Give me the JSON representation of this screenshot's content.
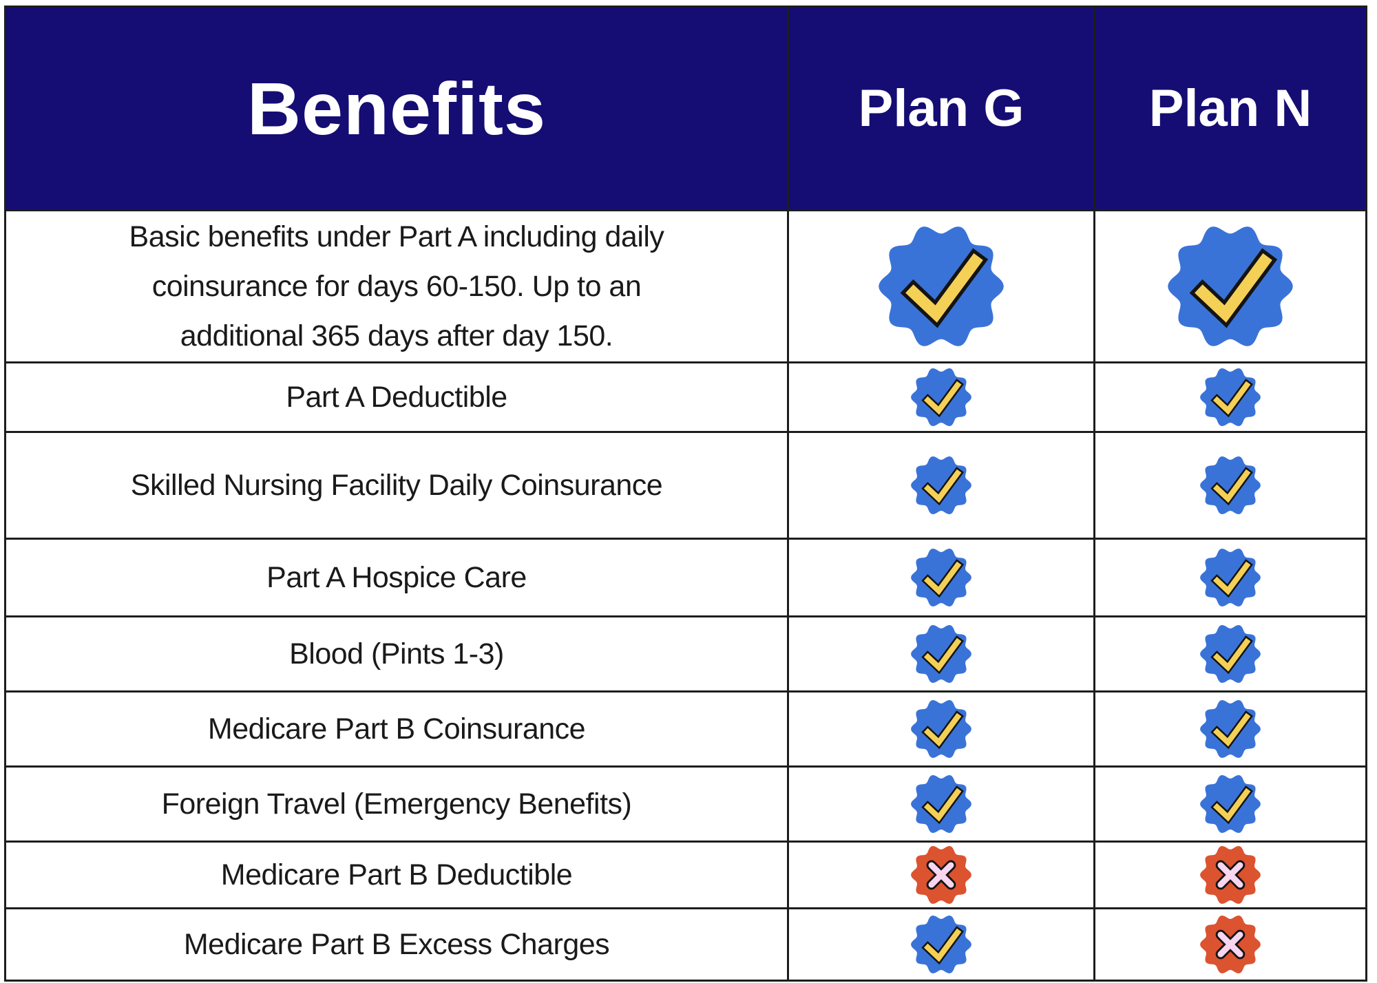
{
  "chart_data": {
    "type": "table",
    "title": "Benefits",
    "columns": [
      "Benefits",
      "Plan G",
      "Plan N"
    ],
    "rows": [
      {
        "benefit": "Basic benefits under Part A including daily coinsurance for days 60-150.  Up to an additional 365 days after day 150.",
        "lines": [
          "Basic benefits under Part A including daily",
          "coinsurance for days 60-150.  Up to an",
          "additional 365 days after day 150."
        ],
        "plan_g": true,
        "plan_n": true,
        "badge_size": "large"
      },
      {
        "benefit": "Part A Deductible",
        "lines": [
          "Part A Deductible"
        ],
        "plan_g": true,
        "plan_n": true,
        "badge_size": "small"
      },
      {
        "benefit": "Skilled Nursing Facility Daily Coinsurance",
        "lines": [
          "Skilled Nursing Facility Daily Coinsurance"
        ],
        "plan_g": true,
        "plan_n": true,
        "badge_size": "small"
      },
      {
        "benefit": "Part A Hospice Care",
        "lines": [
          "Part A Hospice Care"
        ],
        "plan_g": true,
        "plan_n": true,
        "badge_size": "small"
      },
      {
        "benefit": "Blood (Pints 1-3)",
        "lines": [
          "Blood (Pints 1-3)"
        ],
        "plan_g": true,
        "plan_n": true,
        "badge_size": "small"
      },
      {
        "benefit": "Medicare Part B Coinsurance",
        "lines": [
          "Medicare Part B Coinsurance"
        ],
        "plan_g": true,
        "plan_n": true,
        "badge_size": "small"
      },
      {
        "benefit": "Foreign Travel (Emergency Benefits)",
        "lines": [
          "Foreign Travel (Emergency Benefits)"
        ],
        "plan_g": true,
        "plan_n": true,
        "badge_size": "small"
      },
      {
        "benefit": "Medicare Part B Deductible",
        "lines": [
          "Medicare Part B Deductible"
        ],
        "plan_g": false,
        "plan_n": false,
        "badge_size": "small"
      },
      {
        "benefit": "Medicare Part B Excess Charges",
        "lines": [
          "Medicare Part B Excess Charges"
        ],
        "plan_g": true,
        "plan_n": false,
        "badge_size": "small"
      }
    ],
    "value_icons": {
      "true": "seal-check-badge",
      "false": "seal-x-badge"
    },
    "layout": "3-column comparison table, header row navy, gridlines dark"
  },
  "colors": {
    "header_bg": "#150d73",
    "header_text": "#ffffff",
    "grid_line": "#1d1d1d",
    "row_bg": "#ffffff",
    "label_text": "#1a1a1a",
    "check_badge": "#3a73d8",
    "check_mark": "#f4d056",
    "cross_badge": "#dc5330",
    "cross_mark": "#f8d6ef",
    "mark_outline": "#141414"
  }
}
